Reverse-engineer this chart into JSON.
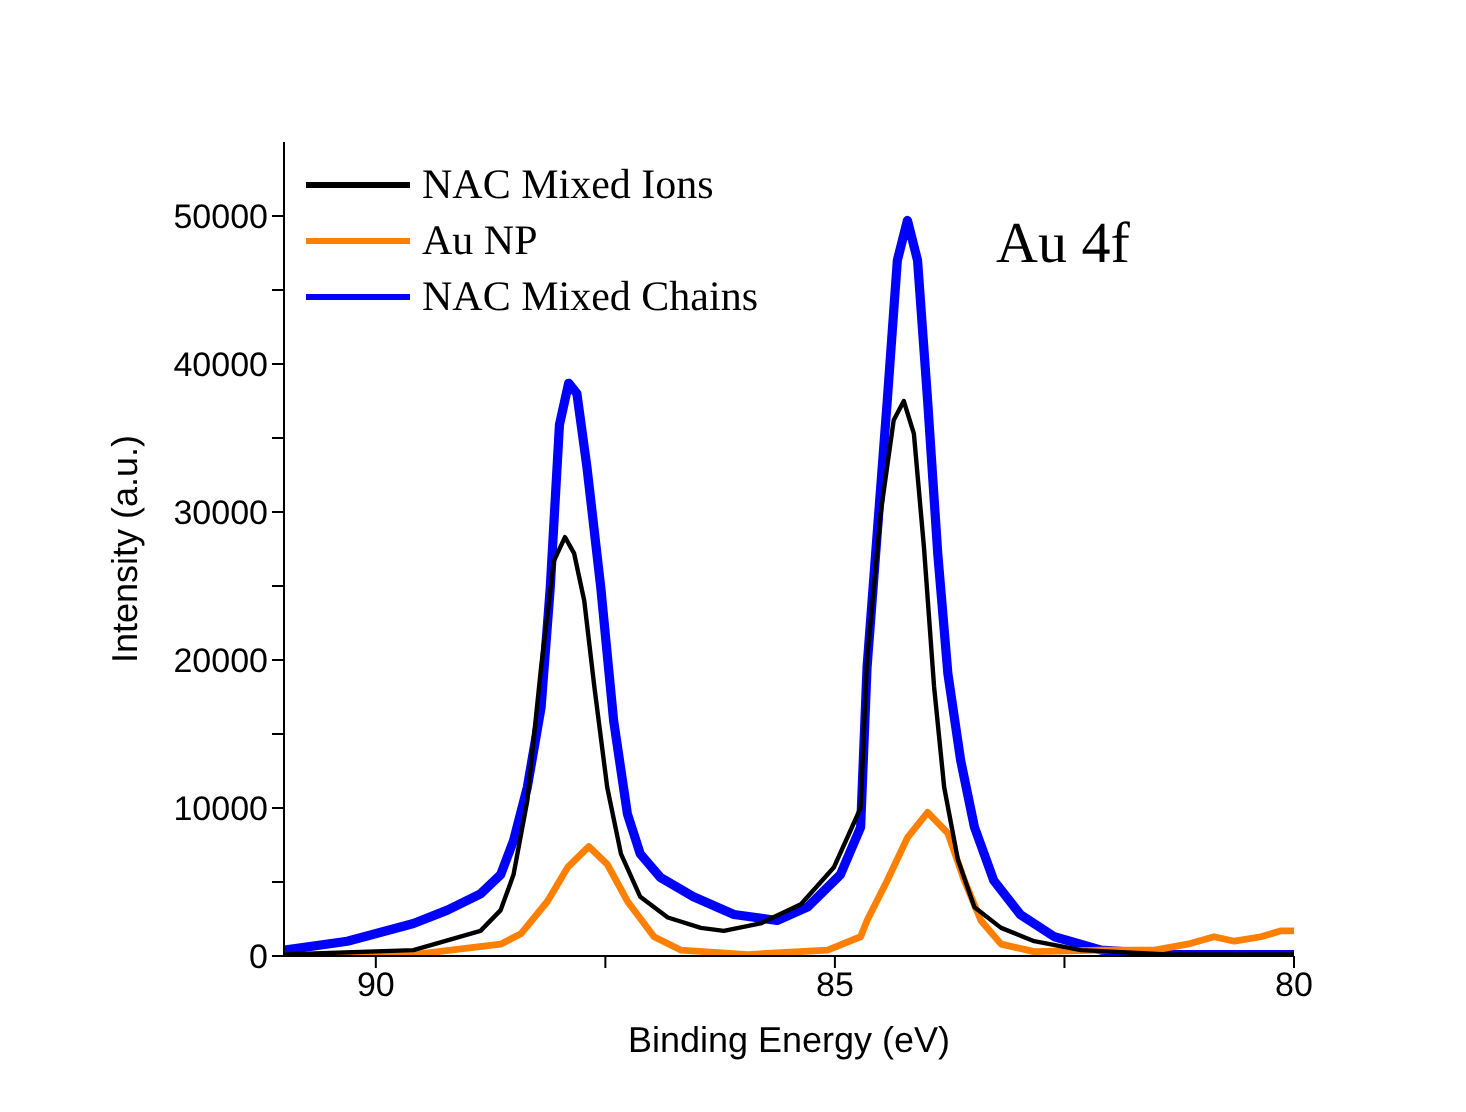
{
  "chart_data": {
    "type": "line",
    "xlabel": "Binding Energy (eV)",
    "ylabel": "Intensity (a.u.)",
    "annotations": [
      "Au 4f"
    ],
    "xlim": [
      91,
      80
    ],
    "xticks": [
      90,
      {
        "value": 87.5,
        "label": null
      },
      85,
      {
        "value": 82.5,
        "label": null
      },
      80
    ],
    "ylim": [
      0,
      55000
    ],
    "yticks": [
      0,
      {
        "value": 5000,
        "label": null
      },
      10000,
      {
        "value": 15000,
        "label": null
      },
      20000,
      {
        "value": 25000,
        "label": null
      },
      30000,
      {
        "value": 35000,
        "label": null
      },
      40000,
      {
        "value": 45000,
        "label": null
      },
      50000
    ],
    "grid": false,
    "legend": "top left",
    "marker": "none",
    "line_style": "solid",
    "series": [
      {
        "name": "NAC Mixed Ions",
        "color": "#000000",
        "x": [
          91.0,
          89.59,
          88.86,
          88.64,
          88.5,
          88.35,
          88.2,
          88.06,
          87.94,
          87.84,
          87.73,
          87.62,
          87.48,
          87.33,
          87.12,
          86.82,
          86.46,
          86.21,
          85.81,
          85.37,
          85.01,
          84.72,
          84.65,
          84.5,
          84.36,
          84.25,
          84.14,
          84.03,
          83.92,
          83.81,
          83.66,
          83.48,
          83.19,
          82.83,
          82.32,
          81.38,
          80.0
        ],
        "values": [
          100,
          400,
          1700,
          3100,
          5500,
          10500,
          19500,
          26700,
          28300,
          27200,
          24000,
          18200,
          11400,
          6900,
          4000,
          2600,
          1900,
          1700,
          2200,
          3500,
          6000,
          10000,
          20000,
          30000,
          36200,
          37500,
          35300,
          27600,
          18200,
          11400,
          6500,
          3300,
          1900,
          1000,
          400,
          100,
          100
        ]
      },
      {
        "name": "Au NP",
        "color": "#ff8000",
        "x": [
          91.0,
          89.59,
          88.64,
          88.42,
          88.13,
          87.91,
          87.68,
          87.48,
          87.26,
          86.97,
          86.68,
          85.95,
          85.08,
          84.72,
          84.65,
          84.43,
          84.21,
          83.99,
          83.77,
          83.59,
          83.41,
          83.19,
          82.83,
          82.1,
          81.52,
          81.16,
          80.87,
          80.65,
          80.36,
          80.14,
          80.0
        ],
        "values": [
          0,
          100,
          800,
          1500,
          3700,
          6000,
          7400,
          6200,
          3700,
          1300,
          400,
          100,
          400,
          1300,
          2400,
          5100,
          8000,
          9700,
          8300,
          5100,
          2400,
          800,
          300,
          400,
          400,
          800,
          1300,
          1000,
          1300,
          1700,
          1700
        ]
      },
      {
        "name": "NAC Mixed Chains",
        "color": "#0000ff",
        "x": [
          91.0,
          90.31,
          89.59,
          89.22,
          88.86,
          88.64,
          88.5,
          88.35,
          88.2,
          88.1,
          88.0,
          87.9,
          87.81,
          87.7,
          87.55,
          87.41,
          87.26,
          87.12,
          86.9,
          86.54,
          86.1,
          85.63,
          85.3,
          84.94,
          84.72,
          84.65,
          84.54,
          84.43,
          84.32,
          84.21,
          84.1,
          83.99,
          83.88,
          83.77,
          83.63,
          83.48,
          83.27,
          82.98,
          82.61,
          82.1,
          81.38,
          80.0
        ],
        "values": [
          400,
          1000,
          2200,
          3100,
          4200,
          5500,
          7800,
          11400,
          16800,
          24900,
          35900,
          38700,
          38000,
          33000,
          24900,
          15900,
          9600,
          6900,
          5300,
          4000,
          2800,
          2400,
          3300,
          5500,
          8700,
          19500,
          28500,
          37500,
          47000,
          49700,
          47000,
          37500,
          27200,
          19100,
          13200,
          8700,
          5100,
          2800,
          1300,
          400,
          100,
          100
        ]
      }
    ]
  }
}
